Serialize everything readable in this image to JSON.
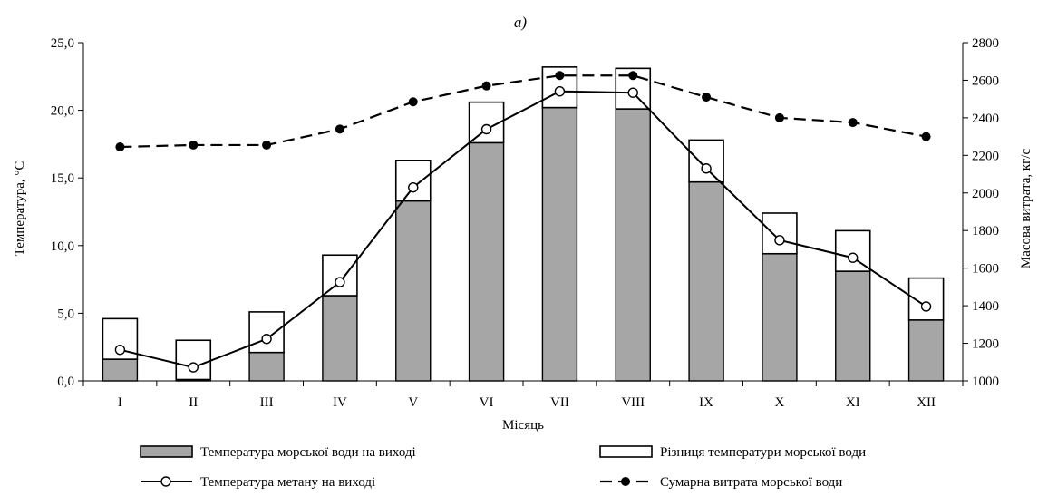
{
  "chart_data": {
    "type": "bar",
    "title": "а)",
    "xlabel": "Місяць",
    "ylabel_left": "Температура, °С",
    "ylabel_right": "Масова витрата, кг/с",
    "categories": [
      "I",
      "II",
      "III",
      "IV",
      "V",
      "VI",
      "VII",
      "VIII",
      "IX",
      "X",
      "XI",
      "XII"
    ],
    "ylim_left": [
      0,
      25
    ],
    "yticks_left": [
      "0,0",
      "5,0",
      "10,0",
      "15,0",
      "20,0",
      "25,0"
    ],
    "ylim_right": [
      1000,
      2800
    ],
    "yticks_right": [
      "1000",
      "1200",
      "1400",
      "1600",
      "1800",
      "2000",
      "2200",
      "2400",
      "2600",
      "2800"
    ],
    "grid": false,
    "legend_position": "bottom",
    "series": [
      {
        "name": "Температура морської води на виході",
        "kind": "stacked-bar",
        "axis": "left",
        "color": "#a6a6a6",
        "values": [
          1.6,
          0.1,
          2.1,
          6.3,
          13.3,
          17.6,
          20.2,
          20.1,
          14.7,
          9.4,
          8.1,
          4.5
        ]
      },
      {
        "name": "Різниця температури морської води",
        "kind": "stacked-bar",
        "axis": "left",
        "color": "#ffffff",
        "values": [
          3.0,
          2.9,
          3.0,
          3.0,
          3.0,
          3.0,
          3.0,
          3.0,
          3.1,
          3.0,
          3.0,
          3.1
        ]
      },
      {
        "name": "Температура метану на виході",
        "kind": "line",
        "axis": "left",
        "marker": "open-circle",
        "values": [
          2.3,
          1.0,
          3.1,
          7.3,
          14.3,
          18.6,
          21.4,
          21.3,
          15.7,
          10.4,
          9.1,
          5.5
        ]
      },
      {
        "name": "Сумарна витрата морської води",
        "kind": "dashed-line",
        "axis": "right",
        "marker": "filled-circle",
        "values": [
          2245,
          2255,
          2255,
          2340,
          2485,
          2570,
          2625,
          2625,
          2510,
          2400,
          2375,
          2300
        ]
      }
    ]
  }
}
